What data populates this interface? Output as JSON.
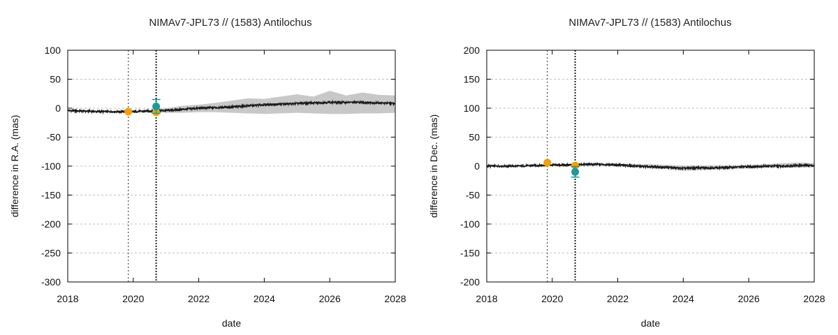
{
  "chart_data": [
    {
      "type": "line",
      "title": "NIMAv7-JPL73 // (1583) Antilochus",
      "xlabel": "date",
      "ylabel": "difference in R.A. (mas)",
      "xlim": [
        2018,
        2028
      ],
      "ylim": [
        -300,
        100
      ],
      "x_ticks": [
        "2018",
        "2020",
        "2022",
        "2024",
        "2026",
        "2028"
      ],
      "y_ticks": [
        "100",
        "50",
        "0",
        "-50",
        "-100",
        "-150",
        "-200",
        "-250",
        "-300"
      ],
      "grid": "horizontal dashed",
      "vertical_markers": [
        2019.85,
        2020.7
      ],
      "series": [
        {
          "role": "mean_difference",
          "color": "#1a1a1a",
          "x": [
            2018.0,
            2018.5,
            2019.0,
            2019.5,
            2020.0,
            2020.5,
            2021.0,
            2021.5,
            2022.0,
            2022.5,
            2023.0,
            2023.5,
            2024.0,
            2024.5,
            2025.0,
            2025.5,
            2026.0,
            2026.5,
            2027.0,
            2027.5,
            2028.0
          ],
          "values": [
            -4,
            -5,
            -6,
            -6,
            -6,
            -5,
            -4,
            -2,
            0,
            1,
            2,
            4,
            6,
            7,
            8,
            9,
            10,
            10,
            10,
            9,
            8
          ]
        },
        {
          "role": "uncertainty_band",
          "color": "#c8c8c8",
          "x": [
            2018.0,
            2018.5,
            2019.0,
            2019.5,
            2020.0,
            2020.5,
            2021.0,
            2021.5,
            2022.0,
            2022.5,
            2023.0,
            2023.5,
            2024.0,
            2024.5,
            2025.0,
            2025.5,
            2026.0,
            2026.5,
            2027.0,
            2027.5,
            2028.0
          ],
          "upper": [
            -3,
            -4,
            -5,
            -5,
            -5,
            -3,
            0,
            4,
            6,
            9,
            13,
            17,
            16,
            20,
            24,
            20,
            30,
            22,
            27,
            23,
            22
          ],
          "lower": [
            -5,
            -6,
            -7,
            -7,
            -8,
            -7,
            -8,
            -8,
            -7,
            -7,
            -8,
            -9,
            -10,
            -9,
            -8,
            -9,
            -10,
            -10,
            -9,
            -9,
            -8
          ]
        }
      ],
      "points": [
        {
          "x": 2019.85,
          "y": -6,
          "color": "#f5a000",
          "err": 0
        },
        {
          "x": 2020.7,
          "y": -7,
          "color": "#f5a000",
          "err": 0
        },
        {
          "x": 2020.7,
          "y": 3,
          "color": "#1a9a9a",
          "err": 12
        }
      ]
    },
    {
      "type": "line",
      "title": "NIMAv7-JPL73 // (1583) Antilochus",
      "xlabel": "date",
      "ylabel": "difference in Dec. (mas)",
      "xlim": [
        2018,
        2028
      ],
      "ylim": [
        -200,
        200
      ],
      "x_ticks": [
        "2018",
        "2020",
        "2022",
        "2024",
        "2026",
        "2028"
      ],
      "y_ticks": [
        "200",
        "150",
        "100",
        "50",
        "0",
        "-50",
        "-100",
        "-150",
        "-200"
      ],
      "grid": "horizontal dashed",
      "vertical_markers": [
        2019.85,
        2020.7
      ],
      "series": [
        {
          "role": "mean_difference",
          "color": "#1a1a1a",
          "x": [
            2018.0,
            2018.5,
            2019.0,
            2019.5,
            2020.0,
            2020.5,
            2021.0,
            2021.5,
            2022.0,
            2022.5,
            2023.0,
            2023.5,
            2024.0,
            2024.5,
            2025.0,
            2025.5,
            2026.0,
            2026.5,
            2027.0,
            2027.5,
            2028.0
          ],
          "values": [
            0,
            0,
            0,
            1,
            2,
            2,
            3,
            3,
            2,
            0,
            -1,
            -2,
            -4,
            -3,
            -3,
            -2,
            -1,
            0,
            0,
            1,
            1
          ]
        },
        {
          "role": "uncertainty_band",
          "color": "#c8c8c8",
          "x": [
            2018.0,
            2018.5,
            2019.0,
            2019.5,
            2020.0,
            2020.5,
            2021.0,
            2021.5,
            2022.0,
            2022.5,
            2023.0,
            2023.5,
            2024.0,
            2024.5,
            2025.0,
            2025.5,
            2026.0,
            2026.5,
            2027.0,
            2027.5,
            2028.0
          ],
          "upper": [
            1,
            1,
            1,
            2,
            3,
            4,
            4,
            4,
            4,
            3,
            3,
            2,
            1,
            1,
            1,
            1,
            2,
            3,
            5,
            6,
            5
          ],
          "lower": [
            -1,
            -1,
            -1,
            0,
            1,
            0,
            1,
            1,
            0,
            -2,
            -4,
            -5,
            -8,
            -7,
            -6,
            -5,
            -4,
            -3,
            -3,
            -3,
            -2
          ]
        }
      ],
      "points": [
        {
          "x": 2019.85,
          "y": 6,
          "color": "#f5a000",
          "err": 0
        },
        {
          "x": 2020.7,
          "y": 1,
          "color": "#f5a000",
          "err": 0
        },
        {
          "x": 2020.7,
          "y": -10,
          "color": "#1a9a9a",
          "err": 9
        }
      ]
    }
  ]
}
